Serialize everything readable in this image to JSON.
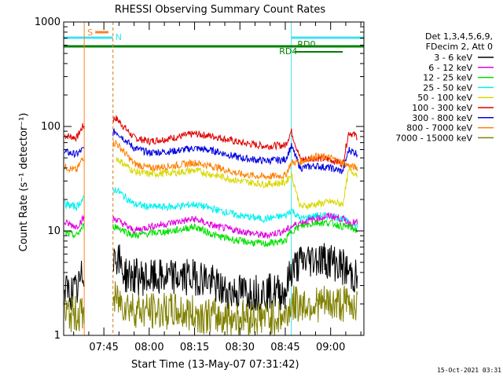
{
  "title": "RHESSI Observing Summary Count Rates",
  "stamp": "15-Oct-2021 03:31",
  "colors": {
    "3 - 6 keV": "#000000",
    "6 - 12 keV": "#e000e0",
    "12 - 25 keV": "#00e000",
    "25 - 50 keV": "#00f0f0",
    "50 - 100 keV": "#d8d800",
    "100 - 300 keV": "#e00000",
    "300 - 800 keV": "#0000e0",
    "800 - 7000 keV": "#ff8000",
    "7000 - 15000 keV": "#808000",
    "saa": "#40e0f0",
    "night": "#008000",
    "flare_marker": "#ff8020"
  },
  "chart_data": {
    "type": "line",
    "title": "RHESSI Observing Summary Count Rates",
    "xlabel": "Start Time (13-May-07 07:31:42)",
    "ylabel": "Count Rate (s⁻¹ detector⁻¹)",
    "yscale": "log",
    "ylim": [
      1,
      1000
    ],
    "xlim": [
      "07:31:42",
      "09:11:00"
    ],
    "x_ticks": [
      "07:45",
      "08:00",
      "08:15",
      "08:30",
      "08:45",
      "09:00"
    ],
    "y_ticks": [
      "1",
      "10",
      "100",
      "1000"
    ],
    "legend": {
      "position": "right",
      "header": [
        "Det 1,3,4,5,6,9,",
        "FDecim 2, Att 0"
      ],
      "entries": [
        "3 - 6 keV",
        "6 - 12 keV",
        "12 - 25 keV",
        "25 - 50 keV",
        "50 - 100 keV",
        "100 - 300 keV",
        "300 - 800 keV",
        "800 - 7000 keV",
        "7000 - 15000 keV"
      ]
    },
    "annotations": {
      "S": "S",
      "N": "N",
      "RD0": "RD0",
      "RD4": "RD4"
    },
    "intervals": {
      "saa": [
        [
          "07:31:42",
          "07:48:00"
        ],
        [
          "08:47:00",
          "09:11:00"
        ]
      ],
      "night": [
        [
          "07:31:42",
          "09:11:00"
        ]
      ],
      "data_gap": [
        "07:38:30",
        "07:48:00"
      ],
      "flare_marker": [
        "07:38:30",
        "07:46:30"
      ]
    },
    "series": [
      {
        "name": "100 - 300 keV",
        "points": [
          [
            "07:32",
            82
          ],
          [
            "07:36",
            78
          ],
          [
            "07:38",
            100
          ],
          [
            "07:49",
            120
          ],
          [
            "07:55",
            78
          ],
          [
            "08:00",
            72
          ],
          [
            "08:08",
            78
          ],
          [
            "08:15",
            85
          ],
          [
            "08:22",
            80
          ],
          [
            "08:30",
            70
          ],
          [
            "08:38",
            65
          ],
          [
            "08:45",
            66
          ],
          [
            "08:47",
            90
          ],
          [
            "08:50",
            48
          ],
          [
            "08:55",
            50
          ],
          [
            "09:00",
            48
          ],
          [
            "09:04",
            44
          ],
          [
            "09:06",
            88
          ],
          [
            "09:09",
            80
          ]
        ]
      },
      {
        "name": "300 - 800 keV",
        "points": [
          [
            "07:32",
            57
          ],
          [
            "07:36",
            54
          ],
          [
            "07:38",
            60
          ],
          [
            "07:49",
            90
          ],
          [
            "07:55",
            62
          ],
          [
            "08:00",
            56
          ],
          [
            "08:08",
            58
          ],
          [
            "08:15",
            62
          ],
          [
            "08:22",
            58
          ],
          [
            "08:30",
            50
          ],
          [
            "08:38",
            47
          ],
          [
            "08:45",
            48
          ],
          [
            "08:47",
            65
          ],
          [
            "08:50",
            40
          ],
          [
            "08:55",
            42
          ],
          [
            "09:00",
            40
          ],
          [
            "09:04",
            37
          ],
          [
            "09:06",
            60
          ],
          [
            "09:09",
            55
          ]
        ]
      },
      {
        "name": "800 - 7000 keV",
        "points": [
          [
            "07:32",
            41
          ],
          [
            "07:36",
            38
          ],
          [
            "07:38",
            50
          ],
          [
            "07:49",
            70
          ],
          [
            "07:55",
            44
          ],
          [
            "08:00",
            40
          ],
          [
            "08:08",
            42
          ],
          [
            "08:15",
            45
          ],
          [
            "08:22",
            41
          ],
          [
            "08:30",
            35
          ],
          [
            "08:38",
            33
          ],
          [
            "08:45",
            34
          ],
          [
            "08:47",
            45
          ],
          [
            "08:50",
            46
          ],
          [
            "08:55",
            52
          ],
          [
            "09:00",
            50
          ],
          [
            "09:04",
            45
          ],
          [
            "09:06",
            42
          ],
          [
            "09:09",
            40
          ]
        ]
      },
      {
        "name": "50 - 100 keV",
        "points": [
          [
            "07:49",
            50
          ],
          [
            "07:55",
            37
          ],
          [
            "08:00",
            35
          ],
          [
            "08:08",
            36
          ],
          [
            "08:15",
            38
          ],
          [
            "08:22",
            34
          ],
          [
            "08:30",
            30
          ],
          [
            "08:38",
            28
          ],
          [
            "08:45",
            29
          ],
          [
            "08:47",
            35
          ],
          [
            "08:50",
            17
          ],
          [
            "08:55",
            18
          ],
          [
            "09:00",
            19
          ],
          [
            "09:04",
            18
          ],
          [
            "09:06",
            38
          ],
          [
            "09:09",
            35
          ]
        ]
      },
      {
        "name": "25 - 50 keV",
        "points": [
          [
            "07:32",
            18
          ],
          [
            "07:36",
            17
          ],
          [
            "07:38",
            20
          ],
          [
            "07:49",
            25
          ],
          [
            "07:55",
            18
          ],
          [
            "08:00",
            17
          ],
          [
            "08:08",
            17
          ],
          [
            "08:15",
            18
          ],
          [
            "08:22",
            16
          ],
          [
            "08:30",
            14
          ],
          [
            "08:38",
            13
          ],
          [
            "08:45",
            14
          ],
          [
            "08:47",
            16
          ],
          [
            "08:50",
            13
          ],
          [
            "08:55",
            14
          ],
          [
            "09:00",
            14
          ],
          [
            "09:04",
            13
          ],
          [
            "09:06",
            12
          ],
          [
            "09:09",
            11
          ]
        ]
      },
      {
        "name": "6 - 12 keV",
        "points": [
          [
            "07:32",
            12
          ],
          [
            "07:36",
            11
          ],
          [
            "07:38",
            13
          ],
          [
            "07:49",
            13
          ],
          [
            "07:55",
            10
          ],
          [
            "08:00",
            11
          ],
          [
            "08:08",
            12
          ],
          [
            "08:15",
            13
          ],
          [
            "08:22",
            11
          ],
          [
            "08:30",
            10
          ],
          [
            "08:38",
            9
          ],
          [
            "08:45",
            10
          ],
          [
            "08:47",
            11
          ],
          [
            "08:50",
            12
          ],
          [
            "08:55",
            13
          ],
          [
            "09:00",
            14
          ],
          [
            "09:04",
            13
          ],
          [
            "09:06",
            12
          ],
          [
            "09:09",
            12
          ]
        ]
      },
      {
        "name": "12 - 25 keV",
        "points": [
          [
            "07:32",
            9.5
          ],
          [
            "07:36",
            9
          ],
          [
            "07:38",
            11
          ],
          [
            "07:49",
            11
          ],
          [
            "07:55",
            9
          ],
          [
            "08:00",
            9.5
          ],
          [
            "08:08",
            10
          ],
          [
            "08:15",
            11
          ],
          [
            "08:22",
            9
          ],
          [
            "08:30",
            8
          ],
          [
            "08:38",
            7.5
          ],
          [
            "08:45",
            8
          ],
          [
            "08:47",
            10
          ],
          [
            "08:50",
            11
          ],
          [
            "08:55",
            12
          ],
          [
            "09:00",
            12
          ],
          [
            "09:04",
            11
          ],
          [
            "09:06",
            11
          ],
          [
            "09:09",
            10
          ]
        ]
      },
      {
        "name": "3 - 6 keV",
        "points": [
          [
            "07:32",
            2.6
          ],
          [
            "07:36",
            2.6
          ],
          [
            "07:38",
            3.8
          ],
          [
            "07:49",
            6
          ],
          [
            "07:52",
            3.8
          ],
          [
            "08:00",
            3.5
          ],
          [
            "08:10",
            3.6
          ],
          [
            "08:18",
            3.6
          ],
          [
            "08:25",
            2.6
          ],
          [
            "08:35",
            2.6
          ],
          [
            "08:45",
            2.6
          ],
          [
            "08:47",
            4.2
          ],
          [
            "08:50",
            5
          ],
          [
            "08:55",
            5.5
          ],
          [
            "09:00",
            5.2
          ],
          [
            "09:04",
            4.5
          ],
          [
            "09:06",
            4
          ],
          [
            "09:09",
            3.5
          ]
        ]
      },
      {
        "name": "7000 - 15000 keV",
        "points": [
          [
            "07:32",
            1.6
          ],
          [
            "07:36",
            1.6
          ],
          [
            "07:38",
            1.6
          ],
          [
            "07:49",
            2.2
          ],
          [
            "07:55",
            1.8
          ],
          [
            "08:00",
            1.7
          ],
          [
            "08:08",
            1.7
          ],
          [
            "08:15",
            1.6
          ],
          [
            "08:22",
            1.5
          ],
          [
            "08:30",
            1.5
          ],
          [
            "08:38",
            1.5
          ],
          [
            "08:45",
            1.5
          ],
          [
            "08:47",
            2
          ],
          [
            "08:50",
            2
          ],
          [
            "08:55",
            2
          ],
          [
            "09:00",
            2
          ],
          [
            "09:04",
            2
          ],
          [
            "09:06",
            2
          ],
          [
            "09:09",
            2
          ]
        ]
      }
    ]
  }
}
